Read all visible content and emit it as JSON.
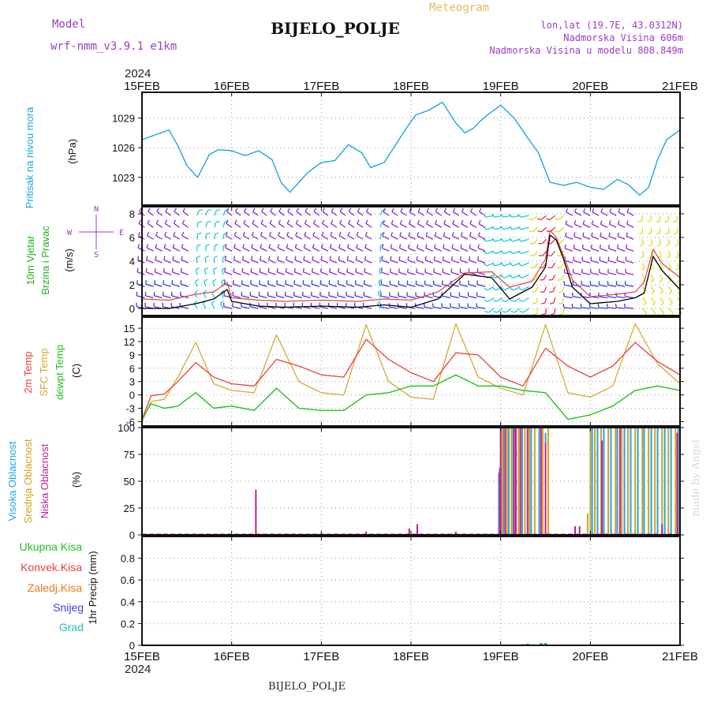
{
  "header": {
    "model_label": "Model",
    "model_name": "wrf-nmm_v3.9.1 e1km",
    "station": "BIJELO_POLJE",
    "subtitle": "Meteogram",
    "lonlat": "lon,lat (19.7E, 43.0312N)",
    "elevation": "Nadmorska Visina 606m",
    "model_elevation": "Nadmorska Visina u modelu 808.849m",
    "year_top": "2024",
    "year_bottom": "2024",
    "footer_station": "BIJELO_POLJE",
    "credit": "made by Angel"
  },
  "colors": {
    "pressure": "#1ea6e0",
    "wind_black": "#000000",
    "wind_red": "#e8403c",
    "barb_purple": "#8c2cd0",
    "barb_blue": "#3a3ae8",
    "barb_cyan": "#1ec8d8",
    "barb_yellow": "#d8e020",
    "temp2m": "#e84040",
    "sfc": "#d8a838",
    "dew": "#20c020",
    "cloud_high": "#1ea6e0",
    "cloud_mid": "#d8a020",
    "cloud_low": "#c0208c",
    "rain_total": "#20c020",
    "rain_conv": "#e84040",
    "rain_freeze": "#e87820",
    "rain_snow": "#4040e0",
    "rain_hail": "#20c0c0",
    "title_purple": "#9c3cc8",
    "title_orange": "#e8b860",
    "credit": "#d8d8d8"
  },
  "chart_data": [
    {
      "type": "line",
      "panel": "pressure",
      "ylabel_1": "Pritisak na nivou mora",
      "ylabel_2": "(hPa)",
      "x_ticks": [
        "15FEB",
        "16FEB",
        "17FEB",
        "18FEB",
        "19FEB",
        "20FEB",
        "21FEB"
      ],
      "x_range_days": [
        0,
        6
      ],
      "ylim": [
        1020.2,
        1031.6
      ],
      "y_ticks": [
        "1023",
        "1026",
        "1029"
      ],
      "y_tick_values": [
        1023,
        1026,
        1029
      ],
      "series": [
        {
          "x": [
            0,
            0.15,
            0.3,
            0.4,
            0.5,
            0.62,
            0.75,
            0.85,
            1.0,
            1.15,
            1.3,
            1.45,
            1.55,
            1.65,
            1.75,
            1.85,
            2.0,
            2.15,
            2.3,
            2.45,
            2.55,
            2.7,
            2.85,
            2.95,
            3.05,
            3.2,
            3.35,
            3.5,
            3.6,
            3.7,
            3.75,
            3.85,
            4.0,
            4.15,
            4.3,
            4.42,
            4.55,
            4.7,
            4.85,
            5.0,
            5.15,
            5.3,
            5.42,
            5.55,
            5.65,
            5.75,
            5.85,
            6.0
          ],
          "values": [
            1026.8,
            1027.3,
            1027.8,
            1026.2,
            1024.2,
            1023.0,
            1025.3,
            1025.8,
            1025.7,
            1025.2,
            1025.7,
            1024.8,
            1022.5,
            1021.5,
            1022.5,
            1023.5,
            1024.5,
            1024.7,
            1026.3,
            1025.5,
            1024.0,
            1024.5,
            1026.6,
            1028.0,
            1029.3,
            1029.8,
            1030.6,
            1028.5,
            1027.5,
            1028.0,
            1028.5,
            1029.3,
            1030.3,
            1029.0,
            1027.0,
            1025.5,
            1022.5,
            1022.2,
            1022.5,
            1022.0,
            1021.8,
            1022.8,
            1022.3,
            1021.2,
            1022.0,
            1024.8,
            1026.8,
            1027.8
          ]
        }
      ]
    },
    {
      "type": "line",
      "panel": "wind",
      "ylabel_1": "10m Vjetar",
      "ylabel_2": "Brzina i Pravac",
      "ylabel_3": "(m/s)",
      "compass_n": "N",
      "compass_e": "E",
      "compass_w": "W",
      "compass_s": "S",
      "ylim": [
        -0.6,
        8.6
      ],
      "y_ticks": [
        "0",
        "2",
        "4",
        "6",
        "8"
      ],
      "y_tick_values": [
        0,
        2,
        4,
        6,
        8
      ],
      "series": [
        {
          "name": "speed",
          "x": [
            0,
            0.3,
            0.6,
            0.8,
            0.95,
            1.0,
            1.3,
            1.6,
            2.0,
            2.4,
            2.7,
            3.0,
            3.3,
            3.6,
            3.9,
            4.1,
            4.35,
            4.5,
            4.55,
            4.62,
            4.7,
            4.8,
            5.0,
            5.3,
            5.5,
            5.6,
            5.7,
            5.8,
            6.0
          ],
          "values": [
            0,
            0,
            0.4,
            0.8,
            1.6,
            0.6,
            0.2,
            0.1,
            0.2,
            0.1,
            0.3,
            0.1,
            0.8,
            2.9,
            2.6,
            0.8,
            1.8,
            3.5,
            6.2,
            5.8,
            4.2,
            1.8,
            0.4,
            0.6,
            0.9,
            1.3,
            4.4,
            3.2,
            1.6
          ]
        },
        {
          "name": "gust",
          "x": [
            0,
            0.3,
            0.6,
            0.8,
            0.95,
            1.0,
            1.3,
            1.6,
            2.0,
            2.4,
            2.7,
            3.0,
            3.3,
            3.6,
            3.9,
            4.1,
            4.35,
            4.5,
            4.55,
            4.62,
            4.7,
            4.8,
            5.0,
            5.3,
            5.5,
            5.6,
            5.7,
            5.8,
            6.0
          ],
          "values": [
            0.8,
            0.7,
            1.2,
            1.4,
            2.2,
            0.9,
            0.7,
            0.6,
            0.7,
            0.6,
            0.8,
            0.7,
            1.4,
            3.0,
            3.1,
            1.8,
            2.3,
            4.2,
            6.6,
            6.0,
            4.5,
            2.4,
            1.0,
            1.2,
            1.4,
            2.2,
            5.0,
            3.8,
            2.6
          ]
        }
      ]
    },
    {
      "type": "line",
      "panel": "temperature",
      "ylabel_1": "2m Temp",
      "ylabel_2": "SFC Temp",
      "ylabel_3": "dewpt Temp",
      "ylabel_4": "(C)",
      "ylim": [
        -7,
        17.5
      ],
      "y_ticks": [
        "-6",
        "-3",
        "0",
        "3",
        "6",
        "9",
        "12",
        "15"
      ],
      "y_tick_values": [
        -6,
        -3,
        0,
        3,
        6,
        9,
        12,
        15
      ],
      "series": [
        {
          "name": "2m",
          "x": [
            0,
            0.1,
            0.25,
            0.4,
            0.6,
            0.8,
            1.0,
            1.25,
            1.5,
            1.75,
            2.0,
            2.25,
            2.5,
            2.75,
            3.0,
            3.25,
            3.5,
            3.75,
            4.0,
            4.25,
            4.5,
            4.75,
            5.0,
            5.25,
            5.5,
            5.75,
            6.0
          ],
          "values": [
            -5.5,
            -0.2,
            0.2,
            3.0,
            7.3,
            4.0,
            2.5,
            2.0,
            8.0,
            6.5,
            4.5,
            4.0,
            12.5,
            8.0,
            5.0,
            3.0,
            9.5,
            9.0,
            4.0,
            2.0,
            10.5,
            6.5,
            4.0,
            6.5,
            11.8,
            7.5,
            4.5
          ]
        },
        {
          "name": "sfc",
          "x": [
            0,
            0.1,
            0.25,
            0.4,
            0.6,
            0.8,
            1.0,
            1.25,
            1.5,
            1.75,
            2.0,
            2.25,
            2.5,
            2.75,
            3.0,
            3.25,
            3.5,
            3.75,
            4.0,
            4.25,
            4.5,
            4.75,
            5.0,
            5.25,
            5.5,
            5.75,
            6.0
          ],
          "values": [
            -6.0,
            -1.5,
            -1.0,
            4.0,
            11.8,
            2.5,
            1.0,
            0.5,
            13.5,
            3.0,
            0.5,
            0.0,
            15.8,
            3.0,
            -0.5,
            -1.0,
            16.0,
            4.0,
            1.5,
            0.0,
            15.8,
            0.5,
            -0.5,
            2.0,
            16.0,
            7.0,
            2.5
          ]
        },
        {
          "name": "dewpt",
          "x": [
            0,
            0.1,
            0.25,
            0.4,
            0.6,
            0.8,
            1.0,
            1.25,
            1.5,
            1.75,
            2.0,
            2.25,
            2.5,
            2.75,
            3.0,
            3.25,
            3.5,
            3.75,
            4.0,
            4.25,
            4.5,
            4.75,
            5.0,
            5.25,
            5.5,
            5.75,
            6.0
          ],
          "values": [
            -5.5,
            -2.0,
            -3.0,
            -2.5,
            0.5,
            -3.0,
            -2.5,
            -3.5,
            1.5,
            -3.0,
            -3.5,
            -3.5,
            0.0,
            0.5,
            2.0,
            2.0,
            4.5,
            2.0,
            2.0,
            1.0,
            0.5,
            -5.5,
            -4.5,
            -2.5,
            1.0,
            2.0,
            1.0
          ]
        }
      ]
    },
    {
      "type": "bar",
      "panel": "clouds",
      "ylabel_1": "Visoka Oblacnost",
      "ylabel_2": "Srednja Oblacnost",
      "ylabel_3": "Niska Oblacnost",
      "ylabel_4": "(%)",
      "ylim": [
        0,
        100
      ],
      "y_ticks": [
        "0",
        "25",
        "50",
        "75",
        "100"
      ],
      "y_tick_values": [
        0,
        25,
        50,
        75,
        100
      ],
      "series": [
        {
          "name": "niska",
          "x": [
            1.27,
            2.5,
            2.98,
            3.07,
            3.5,
            3.99,
            4.0,
            4.05,
            4.15,
            4.17,
            4.22,
            4.3,
            4.45,
            4.5,
            4.83,
            4.88,
            5.13,
            5.33,
            5.8,
            5.97,
            6.1,
            6.2,
            6.3,
            6.4,
            6.5,
            6.6,
            6.7,
            6.8,
            6.9,
            7.0
          ],
          "values": [
            42,
            3,
            6,
            10,
            3,
            62,
            100,
            100,
            100,
            100,
            100,
            100,
            100,
            86,
            8,
            8,
            88,
            100,
            10,
            95,
            100,
            100,
            100,
            100,
            100,
            100,
            100,
            100,
            100,
            100
          ]
        },
        {
          "name": "srednja",
          "x": [
            4.0,
            4.02,
            4.07,
            4.12,
            4.2,
            4.27,
            4.32,
            4.38,
            4.47,
            4.53,
            4.97,
            5.0,
            5.05,
            5.12,
            5.2,
            5.28,
            5.35,
            5.42,
            5.5,
            5.58,
            5.65,
            5.72,
            5.8,
            5.87,
            5.95
          ],
          "values": [
            95,
            100,
            100,
            100,
            100,
            100,
            100,
            100,
            100,
            100,
            20,
            100,
            100,
            100,
            100,
            100,
            100,
            100,
            100,
            100,
            100,
            100,
            100,
            100,
            100
          ]
        },
        {
          "name": "visoka",
          "x": [
            3.98,
            4.03,
            4.09,
            4.14,
            4.24,
            4.34,
            4.43,
            4.5,
            5.02,
            5.08,
            5.15,
            5.23,
            5.3,
            5.38,
            5.45,
            5.53,
            5.6,
            5.68,
            5.75,
            5.83,
            5.9,
            5.98
          ],
          "values": [
            58,
            100,
            100,
            100,
            100,
            100,
            100,
            95,
            100,
            100,
            100,
            100,
            100,
            100,
            100,
            100,
            100,
            100,
            100,
            100,
            100,
            100
          ]
        }
      ]
    },
    {
      "type": "bar",
      "panel": "precip",
      "ylabel_1": "1hr Precip (mm)",
      "legend": [
        "Ukupna Kisa",
        "Konvek.Kisa",
        "Zaledj.Kisa",
        "Snijeg",
        "Grad"
      ],
      "ylim": [
        0,
        1.0
      ],
      "y_ticks": [
        "0",
        "0.2",
        "0.4",
        "0.6",
        "0.8"
      ],
      "y_tick_values": [
        0,
        0.2,
        0.4,
        0.6,
        0.8
      ],
      "series": [
        {
          "name": "Ukupna Kisa",
          "x": [
            4.25,
            4.3,
            4.45,
            4.5
          ],
          "values": [
            0.01,
            0.015,
            0.02,
            0.02
          ]
        }
      ]
    }
  ]
}
